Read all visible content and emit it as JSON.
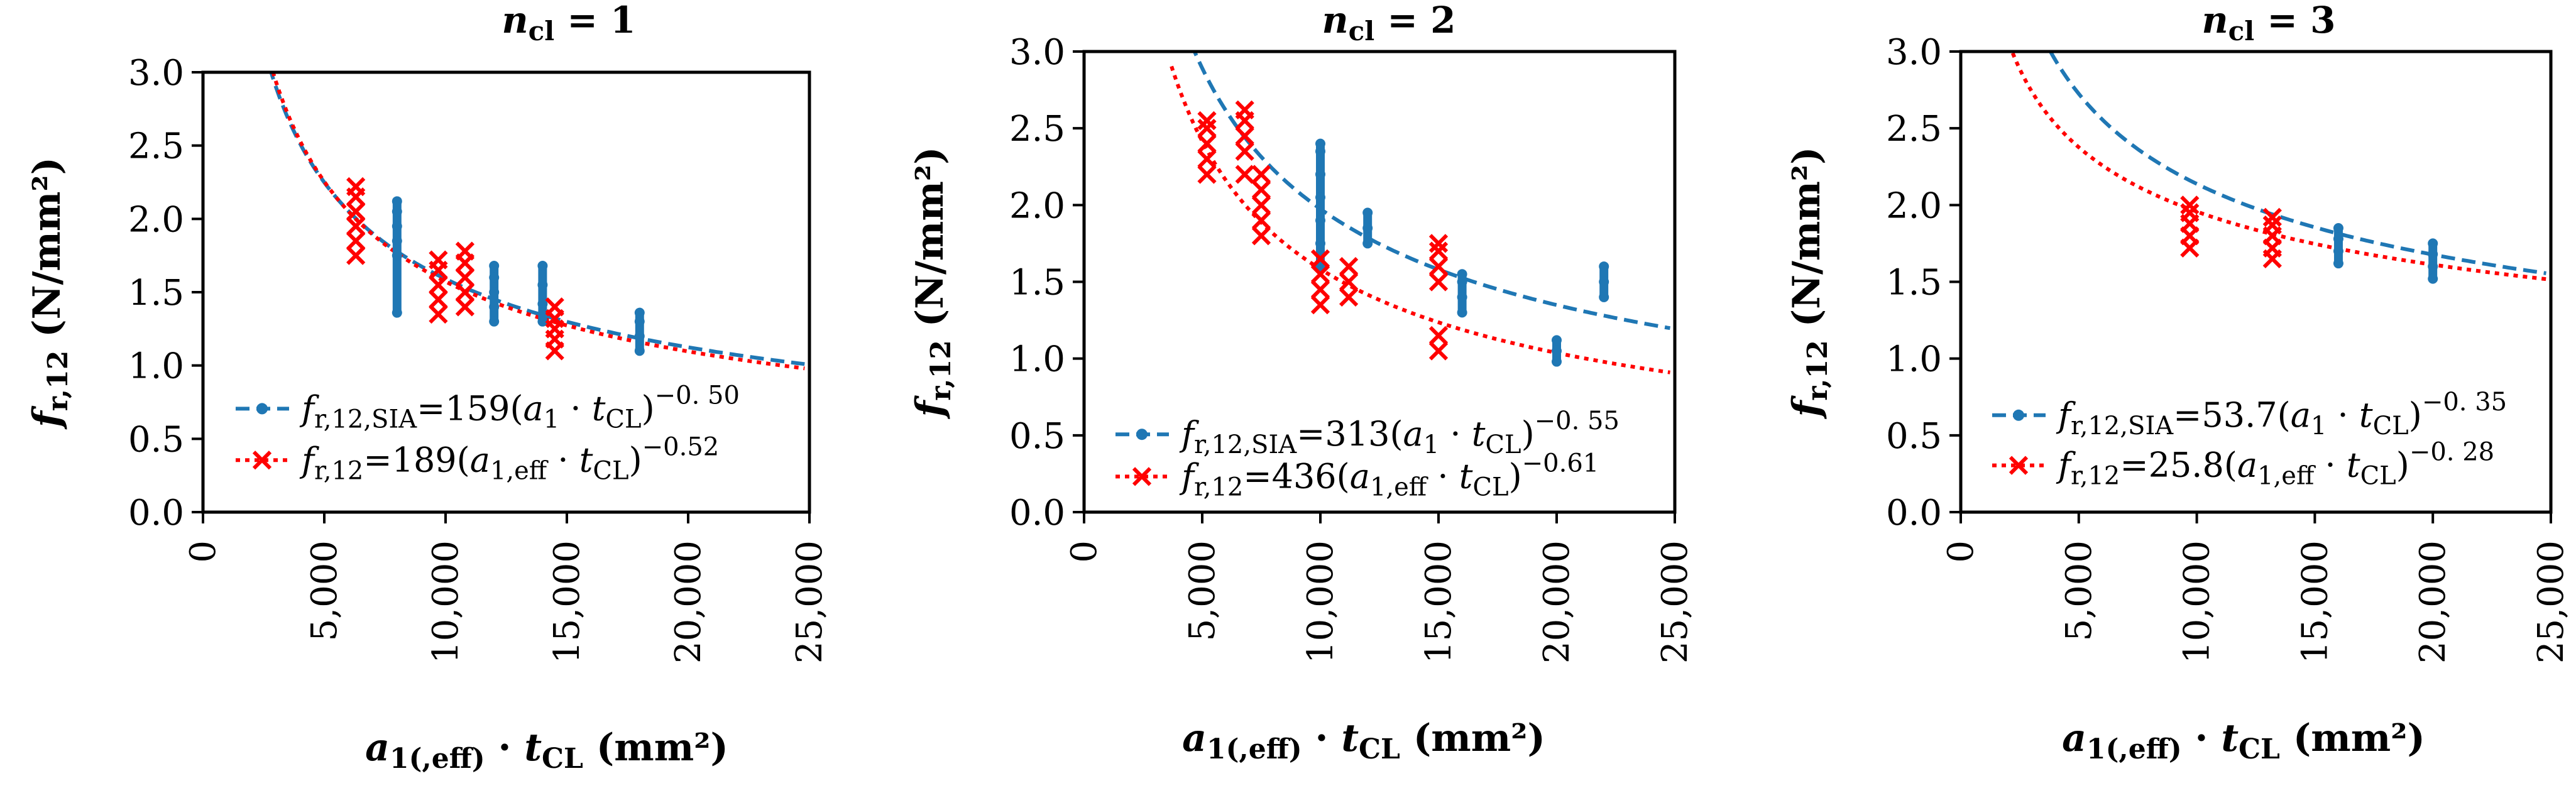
{
  "chart_data": [
    {
      "type": "scatter",
      "title": "n_cl = 1",
      "title_var": "n",
      "title_sub": "cl",
      "title_val": " = 1",
      "xlabel_parts": [
        "a",
        "1(,eff)",
        " · ",
        "t",
        "CL",
        " (mm²)"
      ],
      "ylabel_parts": [
        "f",
        "r,12",
        " (N/mm²)"
      ],
      "xlim": [
        0,
        25000
      ],
      "ylim": [
        0,
        3
      ],
      "xticks": [
        0,
        5000,
        10000,
        15000,
        20000,
        25000
      ],
      "xtick_labels": [
        "0",
        "5,000",
        "10,000",
        "15,000",
        "20,000",
        "25,000"
      ],
      "yticks": [
        0,
        0.5,
        1,
        1.5,
        2,
        2.5,
        3
      ],
      "ytick_labels": [
        "0.0",
        "0.5",
        "1.0",
        "1.5",
        "2.0",
        "2.5",
        "3.0"
      ],
      "legend": {
        "sia": {
          "prefix": "f",
          "sub": "r,12,SIA",
          "coef": "=159(",
          "a": "a",
          "a_sub": "1",
          "mid": " · ",
          "t": "t",
          "t_sub": "CL",
          "close": ")",
          "exp": "−0. 50"
        },
        "exp": {
          "prefix": "f",
          "sub": "r,12",
          "coef": "=189(",
          "a": "a",
          "a_sub": "1,eff",
          "mid": " · ",
          "t": "t",
          "t_sub": "CL",
          "close": ")",
          "exp": "−0.52"
        }
      },
      "series": [
        {
          "name": "f_r,12,SIA",
          "color": "#1f77b4",
          "marker": "point",
          "line": "dashed",
          "fit": {
            "coef": 159,
            "exp": -0.5,
            "x_from": 2300,
            "x_to": 24800
          },
          "groups": [
            {
              "x": 8000,
              "y": [
                1.75,
                1.85,
                1.95,
                2.05,
                2.12,
                1.36
              ]
            },
            {
              "x": 12000,
              "y": [
                1.3,
                1.4,
                1.5,
                1.6,
                1.68
              ]
            },
            {
              "x": 14000,
              "y": [
                1.3,
                1.42,
                1.55,
                1.68
              ]
            },
            {
              "x": 18000,
              "y": [
                1.1,
                1.2,
                1.3,
                1.36
              ]
            }
          ]
        },
        {
          "name": "f_r,12",
          "color": "#ff0000",
          "marker": "x",
          "line": "dotted",
          "fit": {
            "coef": 189,
            "exp": -0.52,
            "x_from": 2300,
            "x_to": 24800
          },
          "groups": [
            {
              "x": 6300,
              "y": [
                1.75,
                1.85,
                1.95,
                2.05,
                2.15,
                2.22
              ]
            },
            {
              "x": 9700,
              "y": [
                1.35,
                1.45,
                1.55,
                1.65,
                1.72
              ]
            },
            {
              "x": 10800,
              "y": [
                1.4,
                1.5,
                1.6,
                1.7,
                1.78
              ]
            },
            {
              "x": 14500,
              "y": [
                1.1,
                1.18,
                1.25,
                1.32,
                1.4
              ]
            }
          ]
        }
      ]
    },
    {
      "type": "scatter",
      "title": "n_cl = 2",
      "title_var": "n",
      "title_sub": "cl",
      "title_val": " = 2",
      "xlabel_parts": [
        "a",
        "1(,eff)",
        " · ",
        "t",
        "CL",
        " (mm²)"
      ],
      "ylabel_parts": [
        "f",
        "r,12",
        " (N/mm²)"
      ],
      "xlim": [
        0,
        25000
      ],
      "ylim": [
        0,
        3
      ],
      "xticks": [
        0,
        5000,
        10000,
        15000,
        20000,
        25000
      ],
      "xtick_labels": [
        "0",
        "5,000",
        "10,000",
        "15,000",
        "20,000",
        "25,000"
      ],
      "yticks": [
        0,
        0.5,
        1,
        1.5,
        2,
        2.5,
        3
      ],
      "ytick_labels": [
        "0.0",
        "0.5",
        "1.0",
        "1.5",
        "2.0",
        "2.5",
        "3.0"
      ],
      "legend": {
        "sia": {
          "prefix": "f",
          "sub": "r,12,SIA",
          "coef": "=313(",
          "a": "a",
          "a_sub": "1",
          "mid": " · ",
          "t": "t",
          "t_sub": "CL",
          "close": ")",
          "exp": "−0. 55"
        },
        "exp": {
          "prefix": "f",
          "sub": "r,12",
          "coef": "=436(",
          "a": "a",
          "a_sub": "1,eff",
          "mid": " · ",
          "t": "t",
          "t_sub": "CL",
          "close": ")",
          "exp": "−0.61"
        }
      },
      "series": [
        {
          "name": "f_r,12,SIA",
          "color": "#1f77b4",
          "marker": "point",
          "line": "dashed",
          "fit": {
            "coef": 313,
            "exp": -0.55,
            "x_from": 4200,
            "x_to": 24800
          },
          "groups": [
            {
              "x": 10000,
              "y": [
                1.6,
                1.75,
                1.9,
                2.05,
                2.2,
                2.35,
                2.4
              ]
            },
            {
              "x": 12000,
              "y": [
                1.75,
                1.85,
                1.95
              ]
            },
            {
              "x": 16000,
              "y": [
                1.3,
                1.4,
                1.5,
                1.55
              ]
            },
            {
              "x": 20000,
              "y": [
                0.98,
                1.05,
                1.12
              ]
            },
            {
              "x": 22000,
              "y": [
                1.4,
                1.5,
                1.6
              ]
            }
          ]
        },
        {
          "name": "f_r,12",
          "color": "#ff0000",
          "marker": "x",
          "line": "dotted",
          "fit": {
            "coef": 436,
            "exp": -0.61,
            "x_from": 3700,
            "x_to": 24800
          },
          "groups": [
            {
              "x": 5200,
              "y": [
                2.2,
                2.3,
                2.4,
                2.5,
                2.55
              ]
            },
            {
              "x": 6800,
              "y": [
                2.2,
                2.35,
                2.45,
                2.55,
                2.62
              ]
            },
            {
              "x": 7500,
              "y": [
                1.8,
                1.9,
                2.0,
                2.1,
                2.2
              ]
            },
            {
              "x": 10000,
              "y": [
                1.35,
                1.45,
                1.55,
                1.65
              ]
            },
            {
              "x": 11200,
              "y": [
                1.4,
                1.5,
                1.6
              ]
            },
            {
              "x": 15000,
              "y": [
                1.05,
                1.15,
                1.5,
                1.6,
                1.7,
                1.75
              ]
            }
          ]
        }
      ]
    },
    {
      "type": "scatter",
      "title": "n_cl = 3",
      "title_var": "n",
      "title_sub": "cl",
      "title_val": " = 3",
      "xlabel_parts": [
        "a",
        "1(,eff)",
        " · ",
        "t",
        "CL",
        " (mm²)"
      ],
      "ylabel_parts": [
        "f",
        "r,12",
        " (N/mm²)"
      ],
      "xlim": [
        0,
        25000
      ],
      "ylim": [
        0,
        3
      ],
      "xticks": [
        0,
        5000,
        10000,
        15000,
        20000,
        25000
      ],
      "xtick_labels": [
        "0",
        "5,000",
        "10,000",
        "15,000",
        "20,000",
        "25,000"
      ],
      "yticks": [
        0,
        0.5,
        1,
        1.5,
        2,
        2.5,
        3
      ],
      "ytick_labels": [
        "0.0",
        "0.5",
        "1.0",
        "1.5",
        "2.0",
        "2.5",
        "3.0"
      ],
      "legend": {
        "sia": {
          "prefix": "f",
          "sub": "r,12,SIA",
          "coef": "=53.7(",
          "a": "a",
          "a_sub": "1",
          "mid": " · ",
          "t": "t",
          "t_sub": "CL",
          "close": ")",
          "exp": "−0. 35"
        },
        "exp": {
          "prefix": "f",
          "sub": "r,12",
          "coef": "=25.8(",
          "a": "a",
          "a_sub": "1,eff",
          "mid": " · ",
          "t": "t",
          "t_sub": "CL",
          "close": ")",
          "exp": "−0. 28"
        }
      },
      "series": [
        {
          "name": "f_r,12,SIA",
          "color": "#1f77b4",
          "marker": "point",
          "line": "dashed",
          "fit": {
            "coef": 53.7,
            "exp": -0.35,
            "x_from": 3400,
            "x_to": 24800
          },
          "groups": [
            {
              "x": 16000,
              "y": [
                1.62,
                1.7,
                1.78,
                1.85
              ]
            },
            {
              "x": 20000,
              "y": [
                1.52,
                1.6,
                1.68,
                1.75
              ]
            }
          ]
        },
        {
          "name": "f_r,12",
          "color": "#ff0000",
          "marker": "x",
          "line": "dotted",
          "fit": {
            "coef": 25.8,
            "exp": -0.28,
            "x_from": 1800,
            "x_to": 24800
          },
          "groups": [
            {
              "x": 9700,
              "y": [
                1.72,
                1.8,
                1.88,
                1.95,
                2.0
              ]
            },
            {
              "x": 13200,
              "y": [
                1.65,
                1.72,
                1.8,
                1.87,
                1.92
              ]
            }
          ]
        }
      ]
    }
  ]
}
